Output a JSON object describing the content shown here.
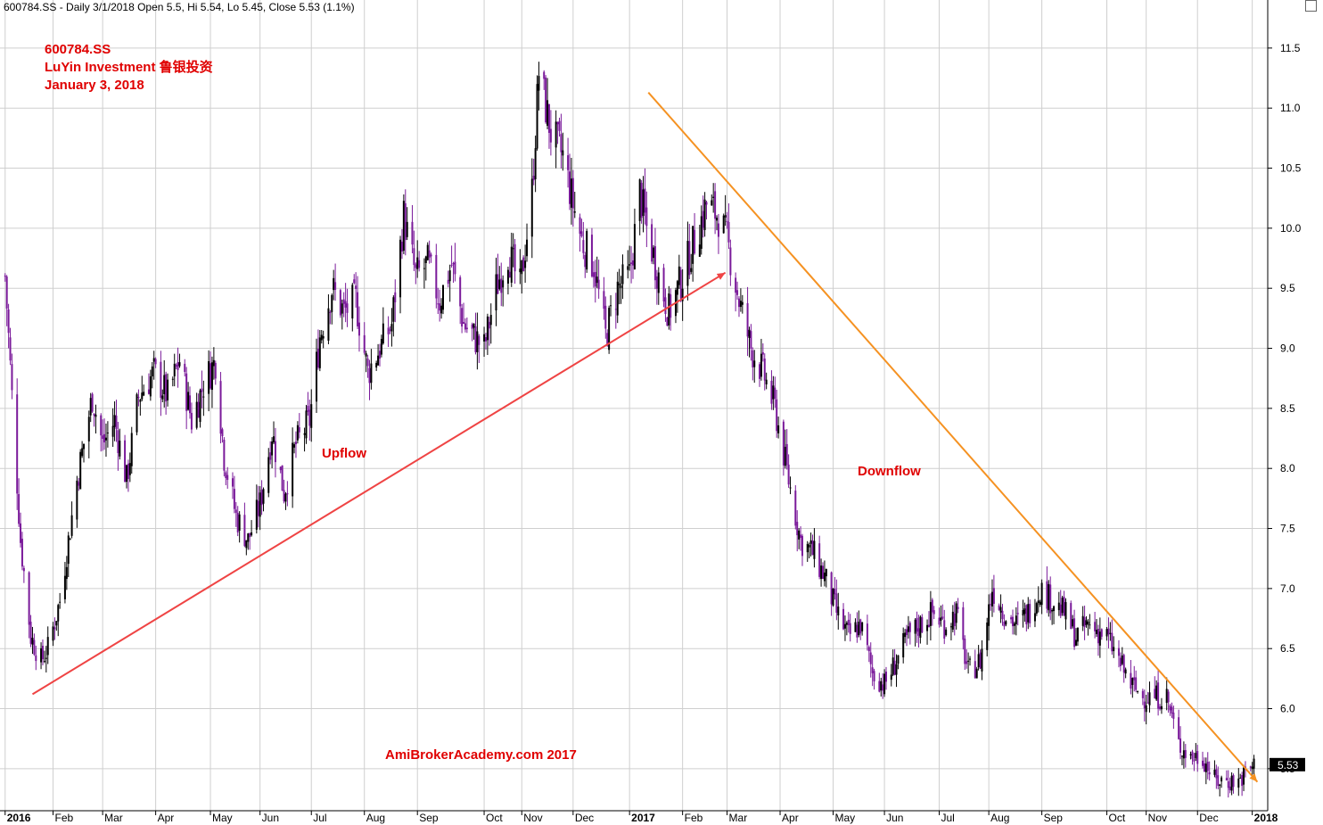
{
  "header": {
    "title": "600784.SS - Daily 3/1/2018 Open 5.5, Hi 5.54, Lo 5.45, Close 5.53 (1.1%)"
  },
  "info": {
    "ticker": "600784.SS",
    "company": "LuYin Investment 鲁银投资",
    "date": "January 3, 2018"
  },
  "annotations": {
    "upflow": "Upflow",
    "downflow": "Downflow",
    "watermark": "AmiBrokerAcademy.com  2017"
  },
  "last_price": {
    "label": "5.53",
    "value": 5.53
  },
  "colors": {
    "candle": "#000000",
    "down_candle": "#7a1a9a",
    "upflow_line": "#ef4444",
    "downflow_line": "#f59222",
    "grid": "#cfcfcf",
    "text_red": "#e00000"
  },
  "chart_data": {
    "type": "candlestick",
    "title": "600784.SS - Daily 3/1/2018 Open 5.5, Hi 5.54, Lo 5.45, Close 5.53 (1.1%)",
    "xlabel": "",
    "ylabel": "",
    "ylim": [
      5.15,
      11.9
    ],
    "yticks": [
      "5.5",
      "6.0",
      "6.5",
      "7.0",
      "7.5",
      "8.0",
      "8.5",
      "9.0",
      "9.5",
      "10.0",
      "10.5",
      "11.0",
      "11.5"
    ],
    "xlim": [
      "2016-01-01",
      "2018-01-10"
    ],
    "xticks": [
      {
        "date": "2016-01-04",
        "label": "2016",
        "bold": true
      },
      {
        "date": "2016-02-01",
        "label": "Feb"
      },
      {
        "date": "2016-03-01",
        "label": "Mar"
      },
      {
        "date": "2016-04-01",
        "label": "Apr"
      },
      {
        "date": "2016-05-03",
        "label": "May"
      },
      {
        "date": "2016-06-01",
        "label": "Jun"
      },
      {
        "date": "2016-07-01",
        "label": "Jul"
      },
      {
        "date": "2016-08-01",
        "label": "Aug"
      },
      {
        "date": "2016-09-01",
        "label": "Sep"
      },
      {
        "date": "2016-10-10",
        "label": "Oct"
      },
      {
        "date": "2016-11-01",
        "label": "Nov"
      },
      {
        "date": "2016-12-01",
        "label": "Dec"
      },
      {
        "date": "2017-01-03",
        "label": "2017",
        "bold": true
      },
      {
        "date": "2017-02-03",
        "label": "Feb"
      },
      {
        "date": "2017-03-01",
        "label": "Mar"
      },
      {
        "date": "2017-04-01",
        "label": "Apr"
      },
      {
        "date": "2017-05-02",
        "label": "May"
      },
      {
        "date": "2017-06-01",
        "label": "Jun"
      },
      {
        "date": "2017-07-03",
        "label": "Jul"
      },
      {
        "date": "2017-08-01",
        "label": "Aug"
      },
      {
        "date": "2017-09-01",
        "label": "Sep"
      },
      {
        "date": "2017-10-09",
        "label": "Oct"
      },
      {
        "date": "2017-11-01",
        "label": "Nov"
      },
      {
        "date": "2017-12-01",
        "label": "Dec"
      },
      {
        "date": "2018-01-02",
        "label": "2018",
        "bold": true
      }
    ],
    "close_path": [
      [
        "2016-01-04",
        9.6
      ],
      [
        "2016-01-08",
        8.6
      ],
      [
        "2016-01-13",
        7.4
      ],
      [
        "2016-01-19",
        6.6
      ],
      [
        "2016-01-25",
        6.4
      ],
      [
        "2016-01-29",
        6.5
      ],
      [
        "2016-02-05",
        6.9
      ],
      [
        "2016-02-15",
        7.9
      ],
      [
        "2016-02-24",
        8.6
      ],
      [
        "2016-03-01",
        8.2
      ],
      [
        "2016-03-08",
        8.4
      ],
      [
        "2016-03-15",
        7.9
      ],
      [
        "2016-03-22",
        8.6
      ],
      [
        "2016-03-31",
        8.8
      ],
      [
        "2016-04-08",
        8.6
      ],
      [
        "2016-04-15",
        8.9
      ],
      [
        "2016-04-22",
        8.4
      ],
      [
        "2016-04-29",
        8.7
      ],
      [
        "2016-05-06",
        8.9
      ],
      [
        "2016-05-11",
        8.1
      ],
      [
        "2016-05-18",
        7.6
      ],
      [
        "2016-05-25",
        7.4
      ],
      [
        "2016-06-01",
        7.7
      ],
      [
        "2016-06-08",
        8.3
      ],
      [
        "2016-06-15",
        7.8
      ],
      [
        "2016-06-22",
        8.2
      ],
      [
        "2016-06-30",
        8.4
      ],
      [
        "2016-07-06",
        9.1
      ],
      [
        "2016-07-13",
        9.5
      ],
      [
        "2016-07-20",
        9.3
      ],
      [
        "2016-07-27",
        9.4
      ],
      [
        "2016-08-03",
        8.8
      ],
      [
        "2016-08-10",
        9.0
      ],
      [
        "2016-08-17",
        9.2
      ],
      [
        "2016-08-24",
        10.1
      ],
      [
        "2016-08-31",
        9.6
      ],
      [
        "2016-09-07",
        9.7
      ],
      [
        "2016-09-14",
        9.4
      ],
      [
        "2016-09-21",
        9.7
      ],
      [
        "2016-09-28",
        9.2
      ],
      [
        "2016-10-10",
        9.0
      ],
      [
        "2016-10-17",
        9.5
      ],
      [
        "2016-10-24",
        9.8
      ],
      [
        "2016-10-31",
        9.5
      ],
      [
        "2016-11-07",
        10.3
      ],
      [
        "2016-11-11",
        11.3
      ],
      [
        "2016-11-18",
        10.8
      ],
      [
        "2016-11-25",
        10.6
      ],
      [
        "2016-12-01",
        10.2
      ],
      [
        "2016-12-06",
        9.9
      ],
      [
        "2016-12-13",
        9.7
      ],
      [
        "2016-12-20",
        9.1
      ],
      [
        "2016-12-27",
        9.5
      ],
      [
        "2017-01-03",
        9.6
      ],
      [
        "2017-01-09",
        10.3
      ],
      [
        "2017-01-13",
        10.0
      ],
      [
        "2017-01-20",
        9.6
      ],
      [
        "2017-01-26",
        9.3
      ],
      [
        "2017-02-03",
        9.6
      ],
      [
        "2017-02-10",
        9.9
      ],
      [
        "2017-02-17",
        10.2
      ],
      [
        "2017-02-24",
        10.1
      ],
      [
        "2017-03-01",
        9.9
      ],
      [
        "2017-03-08",
        9.4
      ],
      [
        "2017-03-15",
        9.0
      ],
      [
        "2017-03-22",
        8.8
      ],
      [
        "2017-03-29",
        8.5
      ],
      [
        "2017-04-06",
        7.9
      ],
      [
        "2017-04-13",
        7.4
      ],
      [
        "2017-04-20",
        7.3
      ],
      [
        "2017-04-27",
        7.1
      ],
      [
        "2017-05-04",
        6.8
      ],
      [
        "2017-05-11",
        6.6
      ],
      [
        "2017-05-18",
        6.7
      ],
      [
        "2017-05-25",
        6.3
      ],
      [
        "2017-06-01",
        6.2
      ],
      [
        "2017-06-08",
        6.4
      ],
      [
        "2017-06-15",
        6.6
      ],
      [
        "2017-06-22",
        6.7
      ],
      [
        "2017-06-29",
        6.8
      ],
      [
        "2017-07-06",
        6.7
      ],
      [
        "2017-07-13",
        6.8
      ],
      [
        "2017-07-20",
        6.3
      ],
      [
        "2017-07-27",
        6.4
      ],
      [
        "2017-08-03",
        7.0
      ],
      [
        "2017-08-10",
        6.8
      ],
      [
        "2017-08-17",
        6.7
      ],
      [
        "2017-08-24",
        6.8
      ],
      [
        "2017-08-31",
        7.0
      ],
      [
        "2017-09-07",
        6.9
      ],
      [
        "2017-09-14",
        6.8
      ],
      [
        "2017-09-21",
        6.6
      ],
      [
        "2017-09-28",
        6.7
      ],
      [
        "2017-10-09",
        6.6
      ],
      [
        "2017-10-16",
        6.4
      ],
      [
        "2017-10-23",
        6.2
      ],
      [
        "2017-10-30",
        6.1
      ],
      [
        "2017-11-06",
        6.1
      ],
      [
        "2017-11-13",
        6.1
      ],
      [
        "2017-11-20",
        5.7
      ],
      [
        "2017-11-27",
        5.6
      ],
      [
        "2017-12-04",
        5.6
      ],
      [
        "2017-12-11",
        5.4
      ],
      [
        "2017-12-18",
        5.4
      ],
      [
        "2017-12-25",
        5.4
      ],
      [
        "2018-01-03",
        5.53
      ]
    ],
    "trendlines": [
      {
        "name": "Upflow",
        "from": [
          "2016-01-20",
          6.12
        ],
        "to": [
          "2017-02-28",
          9.63
        ]
      },
      {
        "name": "Downflow",
        "from": [
          "2017-01-14",
          11.13
        ],
        "to": [
          "2018-01-05",
          5.39
        ]
      }
    ]
  }
}
